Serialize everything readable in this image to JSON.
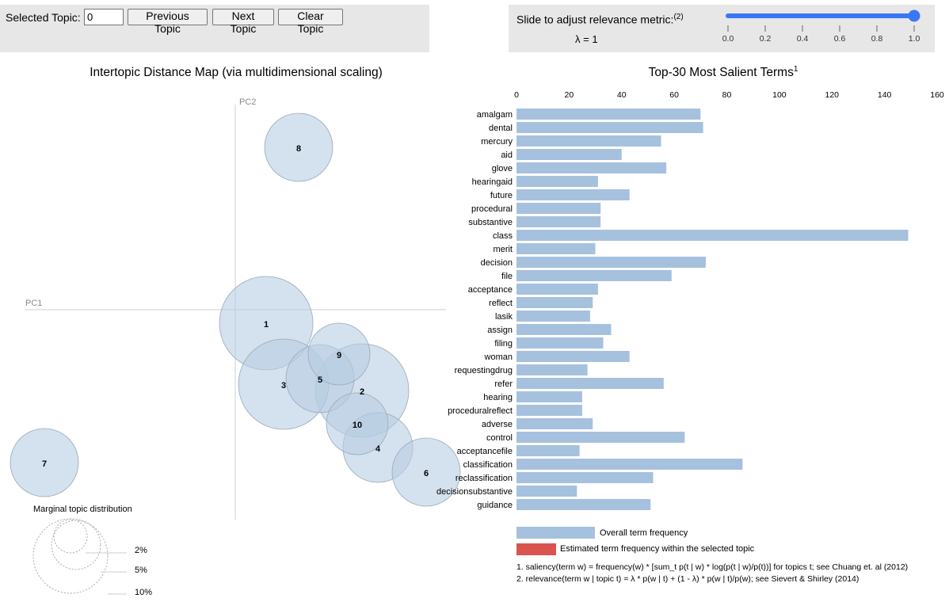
{
  "controls": {
    "selected_topic_label": "Selected Topic:",
    "selected_topic_value": "0",
    "prev_label": "Previous Topic",
    "next_label": "Next Topic",
    "clear_label": "Clear Topic"
  },
  "slider": {
    "label": "Slide to adjust relevance metric:",
    "label_sup": "(2)",
    "lambda_text": "λ = 1",
    "value": 1.0,
    "ticks": [
      "0.0",
      "0.2",
      "0.4",
      "0.6",
      "0.8",
      "1.0"
    ],
    "color": "#3b76f6"
  },
  "left_panel": {
    "title": "Intertopic Distance Map (via multidimensional scaling)",
    "pc1": "PC1",
    "pc2": "PC2",
    "bubble_color": "#b7cde2",
    "topics": [
      {
        "id": "1"
      },
      {
        "id": "2"
      },
      {
        "id": "3"
      },
      {
        "id": "4"
      },
      {
        "id": "5"
      },
      {
        "id": "6"
      },
      {
        "id": "7"
      },
      {
        "id": "8"
      },
      {
        "id": "9"
      },
      {
        "id": "10"
      }
    ],
    "marginal_title": "Marginal topic distribution",
    "marginal_labels": [
      "2%",
      "5%",
      "10%"
    ]
  },
  "chart_data": {
    "type": "bar",
    "title": "Top-30 Most Salient Terms",
    "title_sup": "1",
    "xlim": [
      0,
      160
    ],
    "ticks": [
      0,
      20,
      40,
      60,
      80,
      100,
      120,
      140,
      160
    ],
    "bar_color": "#a6c1de",
    "categories": [
      "amalgam",
      "dental",
      "mercury",
      "aid",
      "glove",
      "hearingaid",
      "future",
      "procedural",
      "substantive",
      "class",
      "merit",
      "decision",
      "file",
      "acceptance",
      "reflect",
      "lasik",
      "assign",
      "filing",
      "woman",
      "requestingdrug",
      "refer",
      "hearing",
      "proceduralreflect",
      "adverse",
      "control",
      "acceptancefile",
      "classification",
      "reclassification",
      "decisionsubstantive",
      "guidance"
    ],
    "series": [
      {
        "name": "Overall term frequency",
        "values": [
          70,
          71,
          55,
          40,
          57,
          31,
          43,
          32,
          32,
          149,
          30,
          72,
          59,
          31,
          29,
          28,
          36,
          33,
          43,
          27,
          56,
          25,
          25,
          29,
          64,
          24,
          86,
          52,
          23,
          51
        ]
      }
    ]
  },
  "legend": {
    "overall": "Overall term frequency",
    "estimated": "Estimated term frequency within the selected topic",
    "overall_color": "#a6c1de",
    "estimated_color": "#d9534f"
  },
  "footnotes": {
    "note1": "1. saliency(term w) = frequency(w) * [sum_t p(t | w) * log(p(t | w)/p(t))] for topics t; see Chuang et. al (2012)",
    "note2": "2. relevance(term w | topic t) = λ * p(w | t) + (1 - λ) * p(w | t)/p(w); see Sievert & Shirley (2014)"
  }
}
